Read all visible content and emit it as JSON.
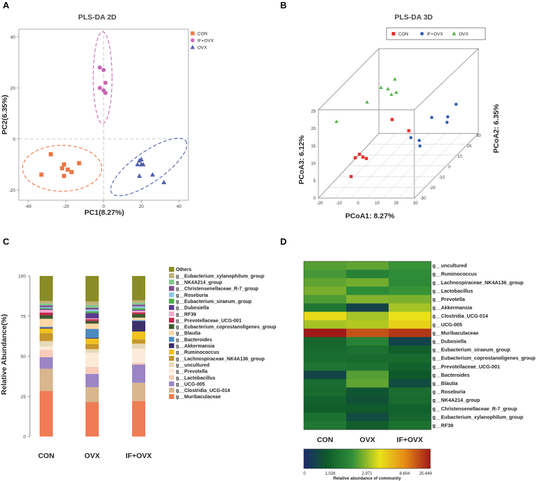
{
  "panels": {
    "A": "A",
    "B": "B",
    "C": "C",
    "D": "D"
  },
  "chart_data": [
    {
      "type": "scatter",
      "panel": "A",
      "title": "PLS-DA 2D",
      "xlabel": "PC1(8.27%)",
      "ylabel": "PC2(6.35%)",
      "xlim": [
        -45,
        45
      ],
      "ylim": [
        -24,
        43
      ],
      "xticks": [
        -40,
        -20,
        0,
        20,
        40
      ],
      "yticks": [
        -20,
        0,
        20,
        40
      ],
      "legend": [
        {
          "name": "CON",
          "color": "#ee7645",
          "shape": "square"
        },
        {
          "name": "IF+OVX",
          "color": "#c964b2",
          "shape": "circle"
        },
        {
          "name": "OVX",
          "color": "#4f5fae",
          "shape": "triangle"
        }
      ],
      "series": [
        {
          "name": "CON",
          "color": "#ee7645",
          "shape": "square",
          "points": [
            [
              -28,
              -6
            ],
            [
              -13,
              -9.5
            ],
            [
              -19,
              -12
            ],
            [
              -21,
              -10
            ],
            [
              -22,
              -11.5
            ],
            [
              -17,
              -13
            ],
            [
              -33,
              -14
            ],
            [
              -21,
              -14.5
            ]
          ]
        },
        {
          "name": "IF+OVX",
          "color": "#c964b2",
          "shape": "circle",
          "points": [
            [
              -2,
              28
            ],
            [
              0,
              27
            ],
            [
              1,
              22
            ],
            [
              0,
              19
            ],
            [
              1,
              18
            ],
            [
              -2,
              20
            ]
          ]
        },
        {
          "name": "OVX",
          "color": "#4f5fae",
          "shape": "triangle",
          "points": [
            [
              20,
              -8
            ],
            [
              19,
              -8.5
            ],
            [
              18,
              -10
            ],
            [
              20,
              -10
            ],
            [
              21,
              -10
            ],
            [
              26,
              -14
            ],
            [
              19,
              -14.5
            ],
            [
              32,
              -17
            ]
          ]
        }
      ],
      "ellipses": [
        {
          "group": "CON",
          "center": [
            -22,
            -11.5
          ],
          "radii": [
            21,
            9
          ],
          "angle": 0
        },
        {
          "group": "IF+OVX",
          "center": [
            -0.5,
            24
          ],
          "radii": [
            5,
            18
          ],
          "angle": 0
        },
        {
          "group": "OVX",
          "center": [
            24,
            -11
          ],
          "radii": [
            24,
            6
          ],
          "angle": -35
        }
      ]
    },
    {
      "type": "scatter",
      "panel": "B",
      "title": "PLS-DA 3D",
      "xlabel": "PCoA1: 8.27%",
      "ylabel": "PCoA2: 6.35%",
      "zlabel": "PCoA3: 6.12%",
      "xticks": [
        -20,
        -10,
        0,
        10,
        20,
        30
      ],
      "yticks": [
        -30,
        -20,
        -10,
        0,
        10,
        20,
        30
      ],
      "zticks": [
        0,
        5,
        10,
        15,
        20,
        25
      ],
      "legend": [
        {
          "name": "CON",
          "color": "#e4302a",
          "shape": "square"
        },
        {
          "name": "IF+OVX",
          "color": "#2e5fb8",
          "shape": "circle"
        },
        {
          "name": "OVX",
          "color": "#54b84a",
          "shape": "triangle"
        }
      ]
    },
    {
      "type": "bar",
      "panel": "C",
      "stacked": true,
      "ylabel": "Relative Abundance(%)",
      "ylim": [
        0,
        100
      ],
      "yticks": [
        0,
        25,
        50,
        75,
        100
      ],
      "categories": [
        "CON",
        "OVX",
        "IF+OVX"
      ],
      "series": [
        {
          "name": "g__Muribaculaceae",
          "color": "#ef7c55",
          "values": [
            25.5,
            19.5,
            20.5
          ]
        },
        {
          "name": "g__Clostridia_UCG-014",
          "color": "#d9b68e",
          "values": [
            12.5,
            8.5,
            10.5
          ]
        },
        {
          "name": "g__UCG-005",
          "color": "#9b85c5",
          "values": [
            6.5,
            7.5,
            10.5
          ]
        },
        {
          "name": "g__Lactobacillus",
          "color": "#f8ccb9",
          "values": [
            4,
            4,
            1
          ]
        },
        {
          "name": "g__Prevotella",
          "color": "#fdebd9",
          "values": [
            2,
            8,
            8
          ]
        },
        {
          "name": "g__uncultured",
          "color": "#e7d9b8",
          "values": [
            3,
            2,
            3
          ]
        },
        {
          "name": "g__Lachnospiraceae_NK4A136_group",
          "color": "#c6962b",
          "values": [
            4.5,
            3,
            2.5
          ]
        },
        {
          "name": "g__Ruminococcus",
          "color": "#f2c21d",
          "values": [
            2.5,
            3,
            4.5
          ]
        },
        {
          "name": "g__Akkermansia",
          "color": "#3c2f6b",
          "values": [
            0.5,
            0.5,
            6
          ]
        },
        {
          "name": "g__Bacteroides",
          "color": "#4b8ac0",
          "values": [
            0.5,
            5,
            0.5
          ]
        },
        {
          "name": "g__Blautia",
          "color": "#fbd7a6",
          "values": [
            4.5,
            3,
            1.5
          ]
        },
        {
          "name": "g__Eubacterium_coprostanoligenes_group",
          "color": "#3d5a2f",
          "values": [
            2,
            1.5,
            2
          ]
        },
        {
          "name": "g__Prevotellaceae_UCG-001",
          "color": "#c3274b",
          "values": [
            1.5,
            1,
            1
          ]
        },
        {
          "name": "g__RF39",
          "color": "#f4a9cf",
          "values": [
            1.5,
            0.5,
            1
          ]
        },
        {
          "name": "g__Dubosiella",
          "color": "#5a3b8e",
          "values": [
            0.5,
            3,
            0.5
          ]
        },
        {
          "name": "g__Eubacterium_siraeum_group",
          "color": "#4ab04a",
          "values": [
            0.5,
            1,
            1
          ]
        },
        {
          "name": "g__Roseburia",
          "color": "#8fc5e6",
          "values": [
            0.5,
            1,
            1
          ]
        },
        {
          "name": "g__Christensenellaceae_R-7_group",
          "color": "#7f4d8f",
          "values": [
            1,
            1,
            1
          ]
        },
        {
          "name": "g__NK4A214_group",
          "color": "#7fc98a",
          "values": [
            1,
            1.5,
            1
          ]
        },
        {
          "name": "g__Eubacterium_xylanophilum_group",
          "color": "#bfb27a",
          "values": [
            1.5,
            2,
            1.5
          ]
        },
        {
          "name": "Others",
          "color": "#8a8d27",
          "values": [
            14,
            14.5,
            14
          ]
        }
      ]
    },
    {
      "type": "heatmap",
      "panel": "D",
      "columns": [
        "CON",
        "OVX",
        "IF+OVX"
      ],
      "rows": [
        "g__uncultured",
        "g__Ruminococcus",
        "g__Lachnospiraceae_NK4A136_group",
        "g__Lactobacillus",
        "g__Prevotella",
        "g__Akkermansia",
        "g__Clostridia_UCG-014",
        "g__UCG-005",
        "g__Muribaculaceae",
        "g__Dubosiella",
        "g__Eubacterium_siraeum_group",
        "g__Eubacterium_coprostanoligenes_group",
        "g__Prevotellaceae_UCG-001",
        "g__Bacteroides",
        "g__Blautia",
        "g__Roseburia",
        "g__NK4A214_group",
        "g__Christensenellaceae_R-7_group",
        "g__Eubacterium_xylanophilum_group",
        "g__RF39"
      ],
      "values": [
        [
          3.0,
          3.2,
          2.6
        ],
        [
          2.8,
          2.0,
          2.4
        ],
        [
          3.2,
          3.5,
          2.3
        ],
        [
          3.6,
          2.4,
          2.6
        ],
        [
          2.9,
          3.8,
          3.7
        ],
        [
          1.6,
          0.35,
          4.5
        ],
        [
          6.5,
          4.5,
          6.2
        ],
        [
          4.5,
          4.8,
          7.0
        ],
        [
          25.4,
          18.0,
          21.0
        ],
        [
          1.1,
          2.0,
          0.35
        ],
        [
          1.2,
          1.4,
          0.9
        ],
        [
          1.3,
          1.2,
          1.2
        ],
        [
          1.5,
          1.4,
          1.0
        ],
        [
          0.4,
          3.0,
          0.8
        ],
        [
          1.3,
          3.2,
          0.5
        ],
        [
          1.2,
          0.7,
          1.3
        ],
        [
          1.0,
          0.6,
          1.2
        ],
        [
          0.9,
          0.8,
          1.0
        ],
        [
          1.4,
          0.5,
          1.1
        ],
        [
          1.6,
          0.9,
          1.4
        ]
      ],
      "colorbar": {
        "label": "Relative abundance of community",
        "ticks": [
          "0",
          "1.026",
          "2.971",
          "8.604",
          "25.449"
        ],
        "stops": [
          "#1a2a6c",
          "#0e5a2a",
          "#2f8e3a",
          "#e9e11a",
          "#e58a16",
          "#a01818"
        ]
      }
    }
  ]
}
